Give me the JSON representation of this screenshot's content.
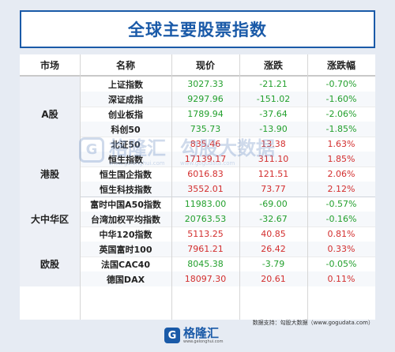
{
  "title": "全球主要股票指数",
  "headers": [
    "市场",
    "名称",
    "现价",
    "涨跌",
    "涨跌幅"
  ],
  "markets": [
    {
      "label": "A股",
      "rows": [
        {
          "name": "上证指数",
          "price": "3027.33",
          "change": "-21.21",
          "pct": "-0.70%",
          "dir": "down"
        },
        {
          "name": "深证成指",
          "price": "9297.96",
          "change": "-151.02",
          "pct": "-1.60%",
          "dir": "down"
        },
        {
          "name": "创业板指",
          "price": "1789.94",
          "change": "-37.64",
          "pct": "-2.06%",
          "dir": "down"
        },
        {
          "name": "科创50",
          "price": "735.73",
          "change": "-13.90",
          "pct": "-1.85%",
          "dir": "down"
        },
        {
          "name": "北证50",
          "price": "835.46",
          "change": "13.38",
          "pct": "1.63%",
          "dir": "up"
        }
      ]
    },
    {
      "label": "港股",
      "rows": [
        {
          "name": "恒生指数",
          "price": "17139.17",
          "change": "311.10",
          "pct": "1.85%",
          "dir": "up"
        },
        {
          "name": "恒生国企指数",
          "price": "6016.83",
          "change": "121.51",
          "pct": "2.06%",
          "dir": "up"
        },
        {
          "name": "恒生科技指数",
          "price": "3552.01",
          "change": "73.77",
          "pct": "2.12%",
          "dir": "up"
        }
      ]
    },
    {
      "label": "大中华区",
      "rows": [
        {
          "name": "富时中国A50指数",
          "price": "11983.00",
          "change": "-69.00",
          "pct": "-0.57%",
          "dir": "down"
        },
        {
          "name": "台湾加权平均指数",
          "price": "20763.53",
          "change": "-32.67",
          "pct": "-0.16%",
          "dir": "down"
        },
        {
          "name": "中华120指数",
          "price": "5113.25",
          "change": "40.85",
          "pct": "0.81%",
          "dir": "up"
        }
      ]
    },
    {
      "label": "欧股",
      "rows": [
        {
          "name": "英国富时100",
          "price": "7961.21",
          "change": "26.42",
          "pct": "0.33%",
          "dir": "up"
        },
        {
          "name": "法国CAC40",
          "price": "8045.38",
          "change": "-3.79",
          "pct": "-0.05%",
          "dir": "down"
        },
        {
          "name": "德国DAX",
          "price": "18097.30",
          "change": "20.61",
          "pct": "0.11%",
          "dir": "up"
        }
      ]
    }
  ],
  "source": "数据支持：勾股大数据（www.gogudata.com）",
  "footer": {
    "logo_char": "G",
    "brand": "格隆汇",
    "url": "www.gelonghui.com"
  },
  "watermark": {
    "brand": "格隆汇",
    "sub": "www.gelonghui.com",
    "brand2": "勾股大数据",
    "sub2": "www.gogudata.com"
  },
  "colors": {
    "up": "#d32e2e",
    "down": "#23a02d",
    "accent": "#1a5aa8"
  }
}
